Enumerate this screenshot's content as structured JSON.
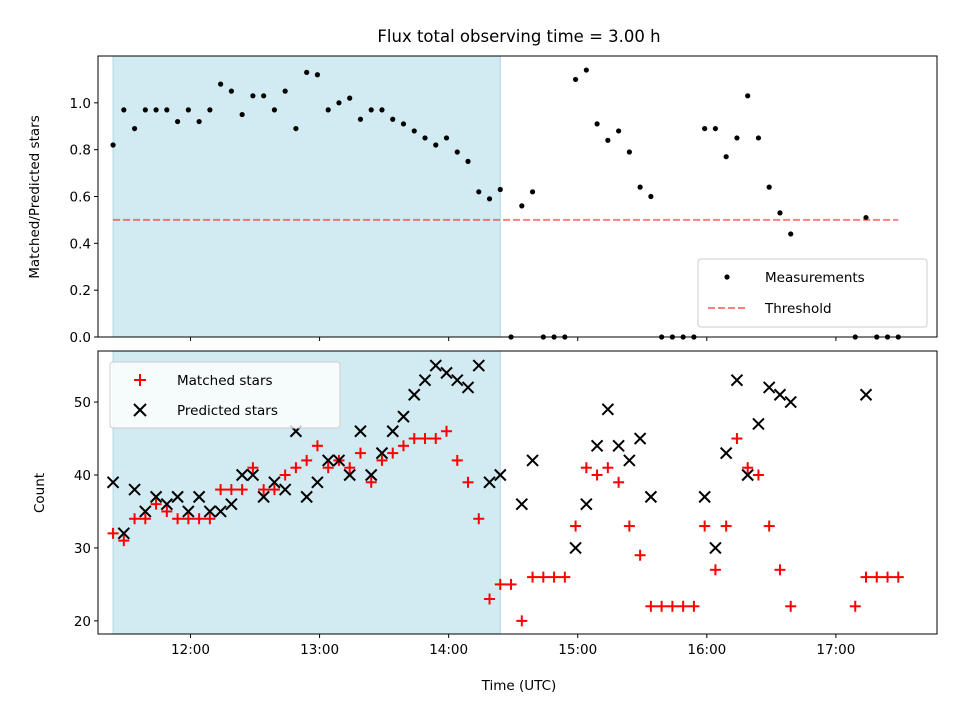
{
  "title": "Flux total observing time = 3.00 h",
  "colors": {
    "shade": "#add8e6",
    "measurement": "#000000",
    "threshold": "#ff0000",
    "matched": "#ff0000",
    "predicted": "#000000"
  },
  "chart_data": [
    {
      "type": "scatter",
      "ylabel": "Matched/Predicted stars",
      "xlim": [
        "11:17",
        "17:47"
      ],
      "ylim": [
        0,
        1.2
      ],
      "yticks": [
        "0.0",
        "0.2",
        "0.4",
        "0.6",
        "0.8",
        "1.0"
      ],
      "shaded_region": [
        "11:24",
        "14:24"
      ],
      "legend": {
        "position": "lower-right",
        "entries": [
          "Measurements",
          "Threshold"
        ]
      },
      "series": [
        {
          "name": "Measurements",
          "marker": "dot",
          "points": [
            [
              "11:24",
              0.82
            ],
            [
              "11:29",
              0.97
            ],
            [
              "11:34",
              0.89
            ],
            [
              "11:39",
              0.97
            ],
            [
              "11:44",
              0.97
            ],
            [
              "11:49",
              0.97
            ],
            [
              "11:54",
              0.92
            ],
            [
              "11:59",
              0.97
            ],
            [
              "12:04",
              0.92
            ],
            [
              "12:09",
              0.97
            ],
            [
              "12:14",
              1.08
            ],
            [
              "12:19",
              1.05
            ],
            [
              "12:24",
              0.95
            ],
            [
              "12:29",
              1.03
            ],
            [
              "12:34",
              1.03
            ],
            [
              "12:39",
              0.97
            ],
            [
              "12:44",
              1.05
            ],
            [
              "12:49",
              0.89
            ],
            [
              "12:54",
              1.13
            ],
            [
              "12:59",
              1.12
            ],
            [
              "13:04",
              0.97
            ],
            [
              "13:09",
              1.0
            ],
            [
              "13:14",
              1.02
            ],
            [
              "13:19",
              0.93
            ],
            [
              "13:24",
              0.97
            ],
            [
              "13:29",
              0.97
            ],
            [
              "13:34",
              0.93
            ],
            [
              "13:39",
              0.91
            ],
            [
              "13:44",
              0.88
            ],
            [
              "13:49",
              0.85
            ],
            [
              "13:54",
              0.82
            ],
            [
              "13:59",
              0.85
            ],
            [
              "14:04",
              0.79
            ],
            [
              "14:09",
              0.75
            ],
            [
              "14:14",
              0.62
            ],
            [
              "14:19",
              0.59
            ],
            [
              "14:24",
              0.63
            ],
            [
              "14:29",
              0.0
            ],
            [
              "14:34",
              0.56
            ],
            [
              "14:39",
              0.62
            ],
            [
              "14:44",
              0.0
            ],
            [
              "14:49",
              0.0
            ],
            [
              "14:54",
              0.0
            ],
            [
              "14:59",
              1.1
            ],
            [
              "15:04",
              1.14
            ],
            [
              "15:09",
              0.91
            ],
            [
              "15:14",
              0.84
            ],
            [
              "15:19",
              0.88
            ],
            [
              "15:24",
              0.79
            ],
            [
              "15:29",
              0.64
            ],
            [
              "15:34",
              0.6
            ],
            [
              "15:39",
              0.0
            ],
            [
              "15:44",
              0.0
            ],
            [
              "15:49",
              0.0
            ],
            [
              "15:54",
              0.0
            ],
            [
              "15:59",
              0.89
            ],
            [
              "16:04",
              0.89
            ],
            [
              "16:09",
              0.77
            ],
            [
              "16:14",
              0.85
            ],
            [
              "16:19",
              1.03
            ],
            [
              "16:24",
              0.85
            ],
            [
              "16:29",
              0.64
            ],
            [
              "16:34",
              0.53
            ],
            [
              "16:39",
              0.44
            ],
            [
              "17:09",
              0.0
            ],
            [
              "17:14",
              0.51
            ],
            [
              "17:19",
              0.0
            ],
            [
              "17:24",
              0.0
            ],
            [
              "17:29",
              0.0
            ]
          ]
        },
        {
          "name": "Threshold",
          "style": "dashed-line",
          "points": [
            [
              "11:24",
              0.5
            ],
            [
              "17:29",
              0.5
            ]
          ]
        }
      ]
    },
    {
      "type": "scatter",
      "xlabel": "Time (UTC)",
      "ylabel": "Count",
      "xlim": [
        "11:17",
        "17:47"
      ],
      "ylim": [
        18.2,
        57
      ],
      "xticks": [
        "12:00",
        "13:00",
        "14:00",
        "15:00",
        "16:00",
        "17:00"
      ],
      "yticks": [
        "20",
        "30",
        "40",
        "50"
      ],
      "shaded_region": [
        "11:24",
        "14:24"
      ],
      "legend": {
        "position": "top-left",
        "entries": [
          "Matched stars",
          "Predicted stars"
        ]
      },
      "series": [
        {
          "name": "Matched stars",
          "marker": "plus",
          "points": [
            [
              "11:24",
              32
            ],
            [
              "11:29",
              31
            ],
            [
              "11:34",
              34
            ],
            [
              "11:39",
              34
            ],
            [
              "11:44",
              36
            ],
            [
              "11:49",
              35
            ],
            [
              "11:54",
              34
            ],
            [
              "11:59",
              34
            ],
            [
              "12:04",
              34
            ],
            [
              "12:09",
              34
            ],
            [
              "12:14",
              38
            ],
            [
              "12:19",
              38
            ],
            [
              "12:24",
              38
            ],
            [
              "12:29",
              41
            ],
            [
              "12:34",
              38
            ],
            [
              "12:39",
              38
            ],
            [
              "12:44",
              40
            ],
            [
              "12:49",
              41
            ],
            [
              "12:54",
              42
            ],
            [
              "12:59",
              44
            ],
            [
              "13:04",
              41
            ],
            [
              "13:09",
              42
            ],
            [
              "13:14",
              41
            ],
            [
              "13:19",
              43
            ],
            [
              "13:24",
              39
            ],
            [
              "13:29",
              42
            ],
            [
              "13:34",
              43
            ],
            [
              "13:39",
              44
            ],
            [
              "13:44",
              45
            ],
            [
              "13:49",
              45
            ],
            [
              "13:54",
              45
            ],
            [
              "13:59",
              46
            ],
            [
              "14:04",
              42
            ],
            [
              "14:09",
              39
            ],
            [
              "14:14",
              34
            ],
            [
              "14:19",
              23
            ],
            [
              "14:24",
              25
            ],
            [
              "14:29",
              25
            ],
            [
              "14:34",
              20
            ],
            [
              "14:39",
              26
            ],
            [
              "14:44",
              26
            ],
            [
              "14:49",
              26
            ],
            [
              "14:54",
              26
            ],
            [
              "14:59",
              33
            ],
            [
              "15:04",
              41
            ],
            [
              "15:09",
              40
            ],
            [
              "15:14",
              41
            ],
            [
              "15:19",
              39
            ],
            [
              "15:24",
              33
            ],
            [
              "15:29",
              29
            ],
            [
              "15:34",
              22
            ],
            [
              "15:39",
              22
            ],
            [
              "15:44",
              22
            ],
            [
              "15:49",
              22
            ],
            [
              "15:54",
              22
            ],
            [
              "15:59",
              33
            ],
            [
              "16:04",
              27
            ],
            [
              "16:09",
              33
            ],
            [
              "16:14",
              45
            ],
            [
              "16:19",
              41
            ],
            [
              "16:24",
              40
            ],
            [
              "16:29",
              33
            ],
            [
              "16:34",
              27
            ],
            [
              "16:39",
              22
            ],
            [
              "17:09",
              22
            ],
            [
              "17:14",
              26
            ],
            [
              "17:19",
              26
            ],
            [
              "17:24",
              26
            ],
            [
              "17:29",
              26
            ]
          ]
        },
        {
          "name": "Predicted stars",
          "marker": "x",
          "points": [
            [
              "11:24",
              39
            ],
            [
              "11:29",
              32
            ],
            [
              "11:34",
              38
            ],
            [
              "11:39",
              35
            ],
            [
              "11:44",
              37
            ],
            [
              "11:49",
              36
            ],
            [
              "11:54",
              37
            ],
            [
              "11:59",
              35
            ],
            [
              "12:04",
              37
            ],
            [
              "12:09",
              35
            ],
            [
              "12:14",
              35
            ],
            [
              "12:19",
              36
            ],
            [
              "12:24",
              40
            ],
            [
              "12:29",
              40
            ],
            [
              "12:34",
              37
            ],
            [
              "12:39",
              39
            ],
            [
              "12:44",
              38
            ],
            [
              "12:49",
              46
            ],
            [
              "12:54",
              37
            ],
            [
              "12:59",
              39
            ],
            [
              "13:04",
              42
            ],
            [
              "13:09",
              42
            ],
            [
              "13:14",
              40
            ],
            [
              "13:19",
              46
            ],
            [
              "13:24",
              40
            ],
            [
              "13:29",
              43
            ],
            [
              "13:34",
              46
            ],
            [
              "13:39",
              48
            ],
            [
              "13:44",
              51
            ],
            [
              "13:49",
              53
            ],
            [
              "13:54",
              55
            ],
            [
              "13:59",
              54
            ],
            [
              "14:04",
              53
            ],
            [
              "14:09",
              52
            ],
            [
              "14:14",
              55
            ],
            [
              "14:19",
              39
            ],
            [
              "14:24",
              40
            ],
            [
              "14:34",
              36
            ],
            [
              "14:39",
              42
            ],
            [
              "14:59",
              30
            ],
            [
              "15:04",
              36
            ],
            [
              "15:09",
              44
            ],
            [
              "15:14",
              49
            ],
            [
              "15:19",
              44
            ],
            [
              "15:24",
              42
            ],
            [
              "15:29",
              45
            ],
            [
              "15:34",
              37
            ],
            [
              "15:59",
              37
            ],
            [
              "16:04",
              30
            ],
            [
              "16:09",
              43
            ],
            [
              "16:14",
              53
            ],
            [
              "16:19",
              40
            ],
            [
              "16:24",
              47
            ],
            [
              "16:29",
              52
            ],
            [
              "16:34",
              51
            ],
            [
              "16:39",
              50
            ],
            [
              "17:14",
              51
            ]
          ]
        }
      ]
    }
  ]
}
